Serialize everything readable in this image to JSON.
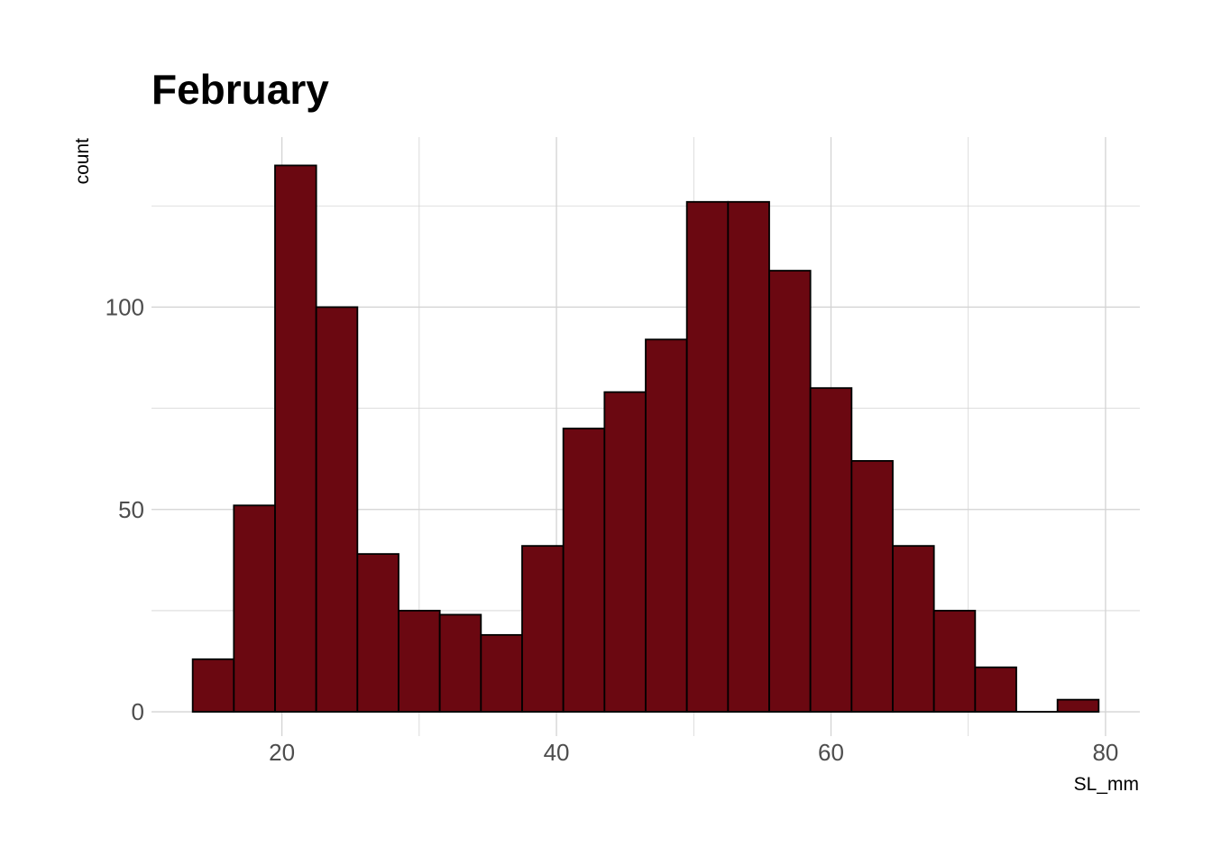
{
  "chart_data": {
    "type": "bar",
    "title": "February",
    "xlabel": "SL_mm",
    "ylabel": "count",
    "bin_width": 3,
    "x": [
      15,
      18,
      21,
      24,
      27,
      30,
      33,
      36,
      39,
      42,
      45,
      48,
      51,
      54,
      57,
      60,
      63,
      66,
      69,
      72,
      75,
      78
    ],
    "values": [
      13,
      51,
      135,
      100,
      39,
      25,
      24,
      19,
      41,
      70,
      79,
      92,
      126,
      126,
      109,
      80,
      62,
      41,
      25,
      11,
      0,
      3
    ],
    "xlim": [
      10.5,
      82.5
    ],
    "ylim": [
      -6,
      142
    ],
    "x_ticks": [
      20,
      40,
      60,
      80
    ],
    "x_tick_labels": [
      "20",
      "40",
      "60",
      "80"
    ],
    "y_ticks": [
      0,
      50,
      100
    ],
    "y_tick_labels": [
      "0",
      "50",
      "100"
    ],
    "x_minor_ticks": [
      30,
      50,
      70
    ],
    "y_minor_ticks": [
      25,
      75,
      125
    ],
    "grid": true,
    "legend": "none",
    "colors": {
      "fill": "#6b0811",
      "outline": "#000000",
      "grid": "#d3d3d3"
    }
  }
}
